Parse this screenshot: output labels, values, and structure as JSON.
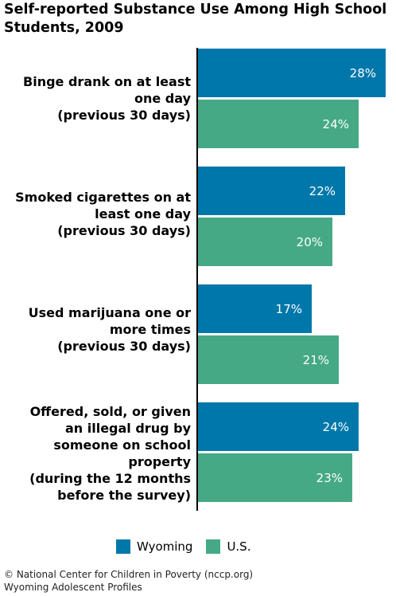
{
  "chart_data": {
    "type": "bar",
    "orientation": "horizontal",
    "title": "Self-reported Substance Use Among High School\nStudents, 2009",
    "categories": [
      "Binge drank on at least\none day\n(previous 30 days)",
      "Smoked cigarettes on at\nleast one day\n(previous 30 days)",
      "Used marijuana one or\nmore times\n(previous 30 days)",
      "Offered, sold, or given\nan illegal drug by\nsomeone on school\nproperty\n(during the 12 months\nbefore the survey)"
    ],
    "series": [
      {
        "name": "Wyoming",
        "values": [
          28,
          22,
          17,
          24
        ],
        "labels": [
          "28%",
          "22%",
          "17%",
          "24%"
        ],
        "color": "#0077aa"
      },
      {
        "name": "U.S.",
        "values": [
          24,
          20,
          21,
          23
        ],
        "labels": [
          "24%",
          "20%",
          "21%",
          "23%"
        ],
        "color": "#45a985"
      }
    ],
    "xlim": [
      0,
      28
    ],
    "legend_position": "bottom",
    "grid": false
  },
  "footer": "© National Center for Children in Poverty (nccp.org)\nWyoming Adolescent Profiles"
}
